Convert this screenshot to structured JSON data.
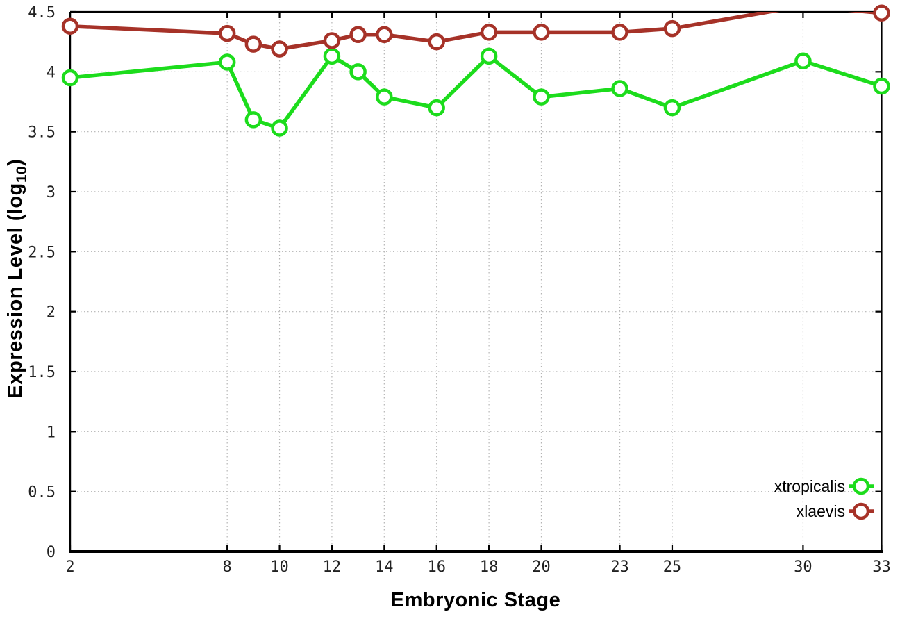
{
  "page": {
    "background_color": "#ffffff",
    "axis_color": "#000000",
    "grid_color": "#b4b4b4",
    "tick_label_color": "#222222"
  },
  "chart_data": {
    "type": "line",
    "title": "",
    "xlabel": "Embryonic Stage",
    "ylabel": "Expression Level (log10)",
    "ylabel_main": "Expression Level (log",
    "ylabel_sub": "10",
    "ylabel_close": ")",
    "xlim": [
      2,
      33
    ],
    "ylim": [
      0,
      4.5
    ],
    "x_ticks": [
      2,
      8,
      10,
      12,
      14,
      16,
      18,
      20,
      23,
      25,
      30,
      33
    ],
    "x_tick_labels": [
      "2",
      "8",
      "10",
      "12",
      "14",
      "16",
      "18",
      "20",
      "23",
      "25",
      "30",
      "33"
    ],
    "y_ticks": [
      0,
      0.5,
      1,
      1.5,
      2,
      2.5,
      3,
      3.5,
      4,
      4.5
    ],
    "y_tick_labels": [
      "0",
      "0.5",
      "1",
      "1.5",
      "2",
      "2.5",
      "3",
      "3.5",
      "4",
      "4.5"
    ],
    "grid": true,
    "marker": "open-circle",
    "legend_position": "bottom-right",
    "x": [
      2,
      8,
      9,
      10,
      12,
      13,
      14,
      16,
      18,
      20,
      23,
      25,
      30,
      33
    ],
    "series": [
      {
        "name": "xtropicalis",
        "color": "#1cdc1c",
        "values": [
          3.95,
          4.08,
          3.6,
          3.53,
          4.13,
          4.0,
          3.79,
          3.7,
          4.13,
          3.79,
          3.86,
          3.7,
          4.09,
          3.88
        ]
      },
      {
        "name": "xlaevis",
        "color": "#a63228",
        "values": [
          4.38,
          4.32,
          4.23,
          4.19,
          4.26,
          4.31,
          4.31,
          4.25,
          4.33,
          4.33,
          4.33,
          4.36,
          4.55,
          4.49
        ]
      }
    ]
  }
}
